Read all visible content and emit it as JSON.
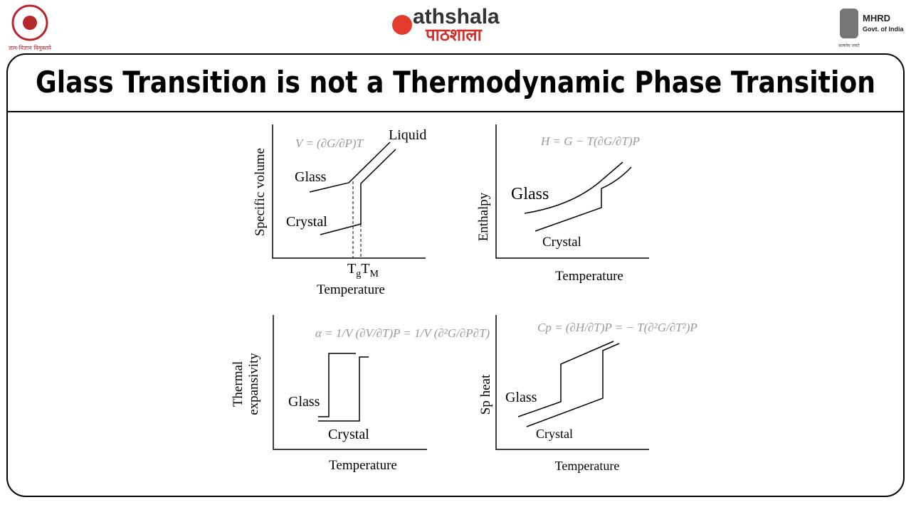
{
  "header": {
    "left_motto": "ज्ञान-विज्ञान विमुक्तये",
    "brand_latin": "athshala",
    "brand_hindi": "पाठशाला",
    "ministry": "MHRD",
    "ministry_sub": "Govt. of India",
    "ministry_motto": "सत्यमेव जयते"
  },
  "title": "Glass Transition is not a Thermodynamic Phase Transition",
  "panels": [
    {
      "equation": "V = (∂G/∂P)T",
      "y_label": "Specific volume",
      "x_label": "Temperature",
      "labels": [
        "Liquid",
        "Glass",
        "Crystal"
      ],
      "markers": [
        {
          "main": "T",
          "sub": "g"
        },
        {
          "main": "T",
          "sub": "M"
        }
      ]
    },
    {
      "equation": "H = G − T(∂G/∂T)P",
      "y_label": "Enthalpy",
      "x_label": "Temperature",
      "labels": [
        "Glass",
        "Crystal"
      ]
    },
    {
      "equation": "α = 1/V (∂V/∂T)P = 1/V (∂²G/∂P∂T)",
      "y_label": [
        "Thermal",
        "expansivity"
      ],
      "x_label": "Temperature",
      "labels": [
        "Glass",
        "Crystal"
      ]
    },
    {
      "equation": "Cp = (∂H/∂T)P = − T(∂²G/∂T²)P",
      "y_label": "Sp heat",
      "x_label": "Temperature",
      "labels": [
        "Glass",
        "Crystal"
      ]
    }
  ]
}
